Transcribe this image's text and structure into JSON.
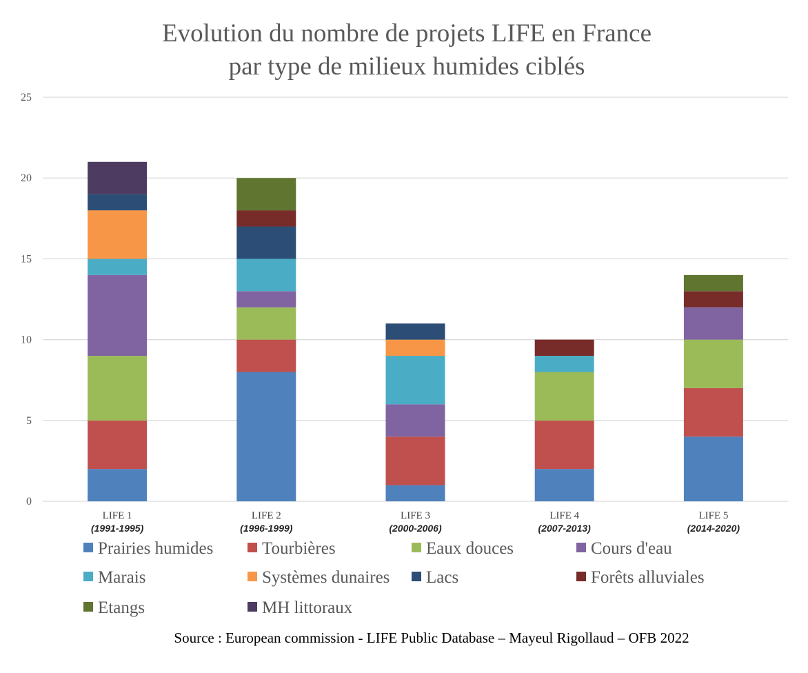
{
  "chart_data": {
    "type": "bar",
    "stacked": true,
    "title": "Evolution du nombre de projets LIFE en France",
    "subtitle": "par type de milieux humides ciblés",
    "categories": [
      {
        "label": "LIFE 1",
        "sublabel": "(1991-1995)"
      },
      {
        "label": "LIFE 2",
        "sublabel": "(1996-1999)"
      },
      {
        "label": "LIFE 3",
        "sublabel": "(2000-2006)"
      },
      {
        "label": "LIFE 4",
        "sublabel": "(2007-2013)"
      },
      {
        "label": "LIFE 5",
        "sublabel": "(2014-2020)"
      }
    ],
    "series": [
      {
        "name": "Prairies humides",
        "color": "#4F81BD",
        "values": [
          2,
          8,
          1,
          2,
          4
        ]
      },
      {
        "name": "Tourbières",
        "color": "#C0504D",
        "values": [
          3,
          2,
          3,
          3,
          3
        ]
      },
      {
        "name": "Eaux douces",
        "color": "#9BBB59",
        "values": [
          4,
          2,
          0,
          3,
          3
        ]
      },
      {
        "name": "Cours d'eau",
        "color": "#8064A2",
        "values": [
          5,
          1,
          2,
          0,
          2
        ]
      },
      {
        "name": "Marais",
        "color": "#4BACC6",
        "values": [
          1,
          2,
          3,
          1,
          0
        ]
      },
      {
        "name": "Systèmes dunaires",
        "color": "#F79646",
        "values": [
          3,
          0,
          1,
          0,
          0
        ]
      },
      {
        "name": "Lacs",
        "color": "#2C4D75",
        "values": [
          1,
          2,
          1,
          0,
          0
        ]
      },
      {
        "name": "Forêts alluviales",
        "color": "#772C2A",
        "values": [
          0,
          1,
          0,
          1,
          1
        ]
      },
      {
        "name": "Etangs",
        "color": "#5F7530",
        "values": [
          0,
          2,
          0,
          0,
          1
        ]
      },
      {
        "name": "MH littoraux",
        "color": "#4D3B62",
        "values": [
          2,
          0,
          0,
          0,
          0
        ]
      }
    ],
    "ylim": [
      0,
      25
    ],
    "yticks": [
      0,
      5,
      10,
      15,
      20,
      25
    ],
    "grid": true,
    "legend": "bottom",
    "xlabel": "",
    "ylabel": ""
  },
  "source": "Source : European commission - LIFE Public Database – Mayeul Rigollaud – OFB 2022"
}
